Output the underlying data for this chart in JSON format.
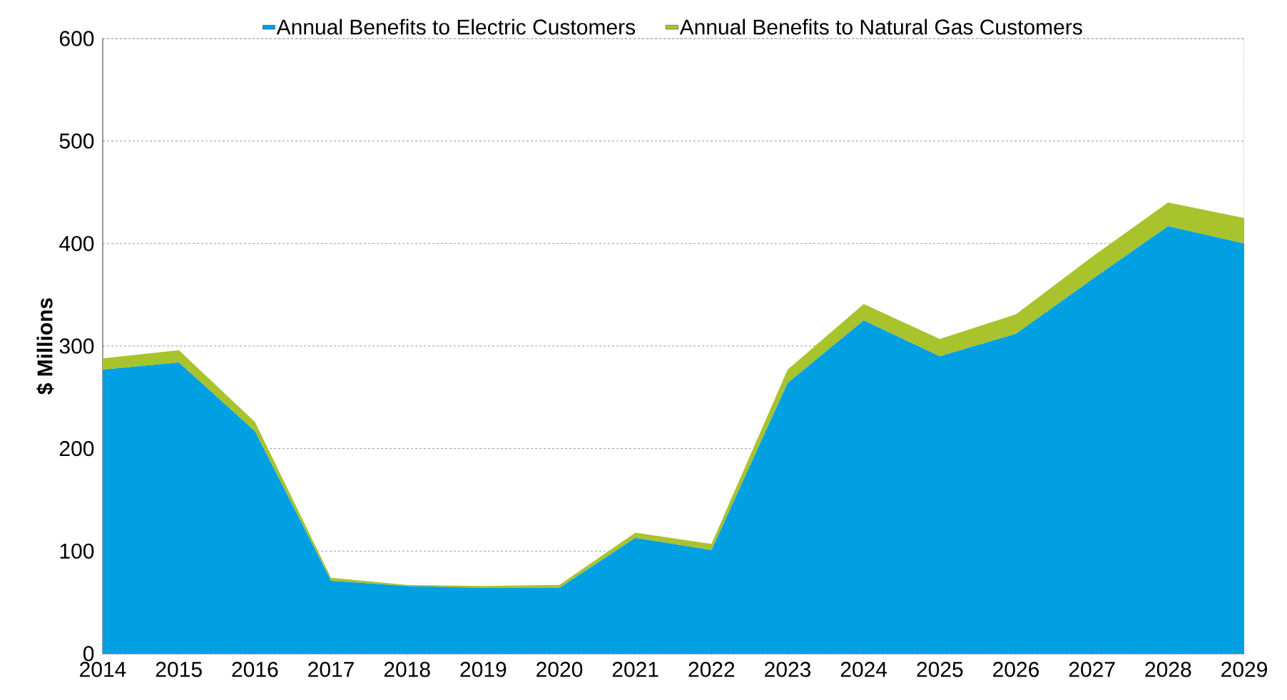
{
  "chart_data": {
    "type": "area",
    "stacked": true,
    "ylabel": "$ Millions",
    "categories": [
      "2014",
      "2015",
      "2016",
      "2017",
      "2018",
      "2019",
      "2020",
      "2021",
      "2022",
      "2023",
      "2024",
      "2025",
      "2026",
      "2027",
      "2028",
      "2029"
    ],
    "series": [
      {
        "name": "Annual Benefits to Electric Customers",
        "color": "#00a0e3",
        "values": [
          277,
          284,
          217,
          71,
          66,
          64,
          64,
          113,
          101,
          264,
          325,
          290,
          312,
          365,
          417,
          400
        ]
      },
      {
        "name": "Annual Benefits to Natural Gas Customers",
        "color": "#a9c32d",
        "values": [
          11,
          12,
          9,
          3,
          1,
          2,
          3,
          5,
          6,
          13,
          16,
          17,
          19,
          22,
          23,
          25
        ]
      }
    ],
    "ylim": [
      0,
      600
    ],
    "yticks": [
      0,
      100,
      200,
      300,
      400,
      500,
      600
    ],
    "grid": "y",
    "legend": "top"
  }
}
